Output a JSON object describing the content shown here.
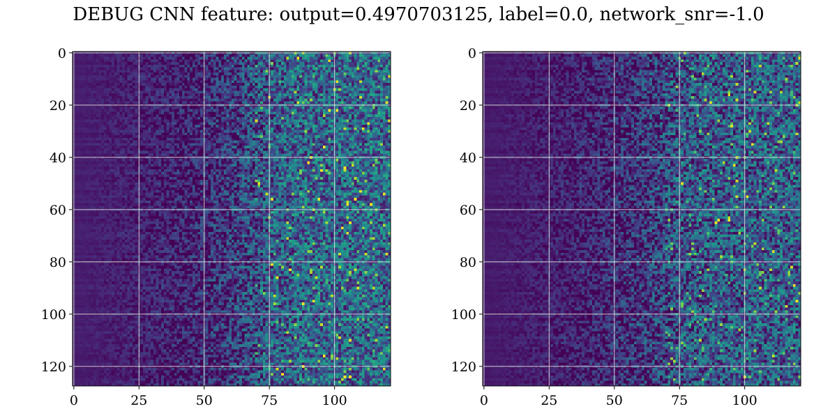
{
  "title": "DEBUG CNN feature: output=0.4970703125, label=0.0, network_snr=-1.0",
  "colors": {
    "colormap": [
      "#440154",
      "#482878",
      "#3e4989",
      "#31688e",
      "#26828e",
      "#1f9e89",
      "#35b779",
      "#6ece58",
      "#b5de2b",
      "#fde725"
    ],
    "grid": "#d0d0d0",
    "frame": "#000000"
  },
  "chart_data": [
    {
      "type": "heatmap",
      "name": "left-panel",
      "rows": 128,
      "cols": 122,
      "xlim": [
        -0.5,
        121.5
      ],
      "ylim": [
        127.5,
        -0.5
      ],
      "xticks": [
        0,
        25,
        50,
        75,
        100
      ],
      "yticks": [
        0,
        20,
        40,
        60,
        80,
        100,
        120
      ],
      "grid": true,
      "colormap": "viridis",
      "texture_seed": 17,
      "mean_profile": [
        [
          0,
          0.08
        ],
        [
          45,
          0.1
        ],
        [
          55,
          0.14
        ],
        [
          65,
          0.2
        ],
        [
          75,
          0.28
        ],
        [
          90,
          0.32
        ],
        [
          121,
          0.33
        ]
      ],
      "bright_spots": [
        [
          2,
          86
        ],
        [
          11,
          101
        ],
        [
          22,
          98
        ],
        [
          22,
          101
        ],
        [
          26,
          121
        ],
        [
          29,
          111
        ],
        [
          36,
          96
        ],
        [
          42,
          90
        ],
        [
          44,
          104
        ],
        [
          45,
          95
        ],
        [
          56,
          94
        ],
        [
          56,
          108
        ],
        [
          58,
          114
        ],
        [
          81,
          76
        ],
        [
          83,
          83
        ],
        [
          96,
          88
        ],
        [
          116,
          96
        ],
        [
          120,
          88
        ],
        [
          123,
          80
        ],
        [
          124,
          104
        ],
        [
          124,
          106
        ]
      ]
    },
    {
      "type": "heatmap",
      "name": "right-panel",
      "rows": 128,
      "cols": 122,
      "xlim": [
        -0.5,
        121.5
      ],
      "ylim": [
        127.5,
        -0.5
      ],
      "xticks": [
        0,
        25,
        50,
        75,
        100
      ],
      "yticks": [
        0,
        20,
        40,
        60,
        80,
        100,
        120
      ],
      "grid": true,
      "colormap": "viridis",
      "texture_seed": 91,
      "mean_profile": [
        [
          0,
          0.07
        ],
        [
          40,
          0.09
        ],
        [
          55,
          0.13
        ],
        [
          65,
          0.18
        ],
        [
          75,
          0.25
        ],
        [
          90,
          0.28
        ],
        [
          121,
          0.29
        ]
      ],
      "bright_spots": [
        [
          43,
          96
        ],
        [
          55,
          101
        ],
        [
          64,
          90
        ],
        [
          64,
          94
        ],
        [
          65,
          89
        ],
        [
          89,
          119
        ],
        [
          124,
          100
        ]
      ]
    }
  ]
}
